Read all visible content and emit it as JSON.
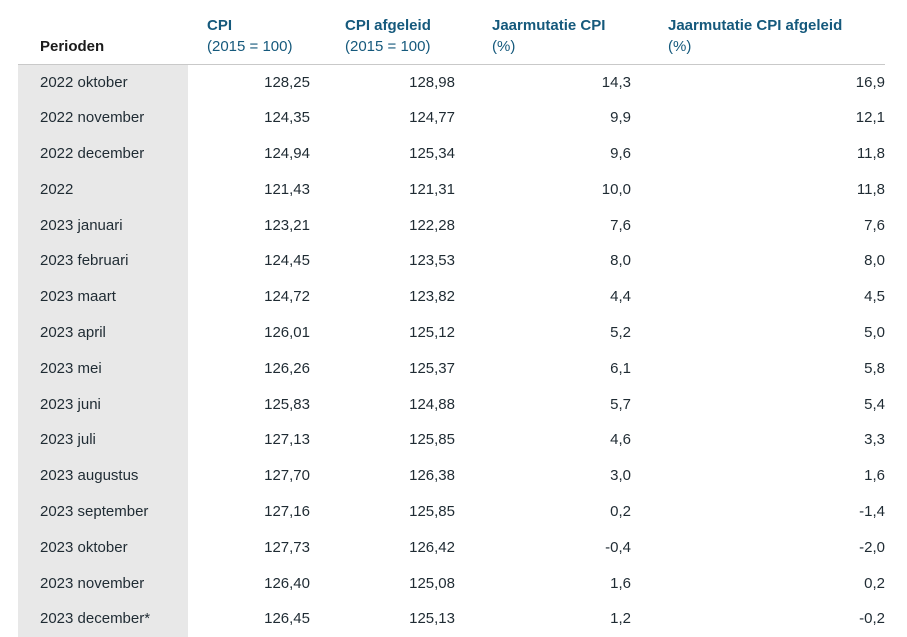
{
  "colors": {
    "header-text": "#15597c",
    "body-text": "#1f2b33",
    "period-heading-text": "#1b1b1b",
    "row-label-bg": "#e8e8e8",
    "header-divider": "#c9c9c9",
    "background": "#ffffff"
  },
  "chart_data": {
    "type": "table",
    "columns": [
      {
        "label": "Perioden",
        "sub": ""
      },
      {
        "label": "CPI",
        "sub": "(2015 = 100)"
      },
      {
        "label": "CPI afgeleid",
        "sub": "(2015 = 100)"
      },
      {
        "label": "Jaarmutatie CPI",
        "sub": "(%)"
      },
      {
        "label": "Jaarmutatie CPI afgeleid",
        "sub": "(%)"
      }
    ],
    "rows": [
      [
        "2022 oktober",
        "128,25",
        "128,98",
        "14,3",
        "16,9"
      ],
      [
        "2022 november",
        "124,35",
        "124,77",
        "9,9",
        "12,1"
      ],
      [
        "2022 december",
        "124,94",
        "125,34",
        "9,6",
        "11,8"
      ],
      [
        "2022",
        "121,43",
        "121,31",
        "10,0",
        "11,8"
      ],
      [
        "2023 januari",
        "123,21",
        "122,28",
        "7,6",
        "7,6"
      ],
      [
        "2023 februari",
        "124,45",
        "123,53",
        "8,0",
        "8,0"
      ],
      [
        "2023 maart",
        "124,72",
        "123,82",
        "4,4",
        "4,5"
      ],
      [
        "2023 april",
        "126,01",
        "125,12",
        "5,2",
        "5,0"
      ],
      [
        "2023 mei",
        "126,26",
        "125,37",
        "6,1",
        "5,8"
      ],
      [
        "2023 juni",
        "125,83",
        "124,88",
        "5,7",
        "5,4"
      ],
      [
        "2023 juli",
        "127,13",
        "125,85",
        "4,6",
        "3,3"
      ],
      [
        "2023 augustus",
        "127,70",
        "126,38",
        "3,0",
        "1,6"
      ],
      [
        "2023 september",
        "127,16",
        "125,85",
        "0,2",
        "-1,4"
      ],
      [
        "2023 oktober",
        "127,73",
        "126,42",
        "-0,4",
        "-2,0"
      ],
      [
        "2023 november",
        "126,40",
        "125,08",
        "1,6",
        "0,2"
      ],
      [
        "2023 december*",
        "126,45",
        "125,13",
        "1,2",
        "-0,2"
      ]
    ]
  }
}
